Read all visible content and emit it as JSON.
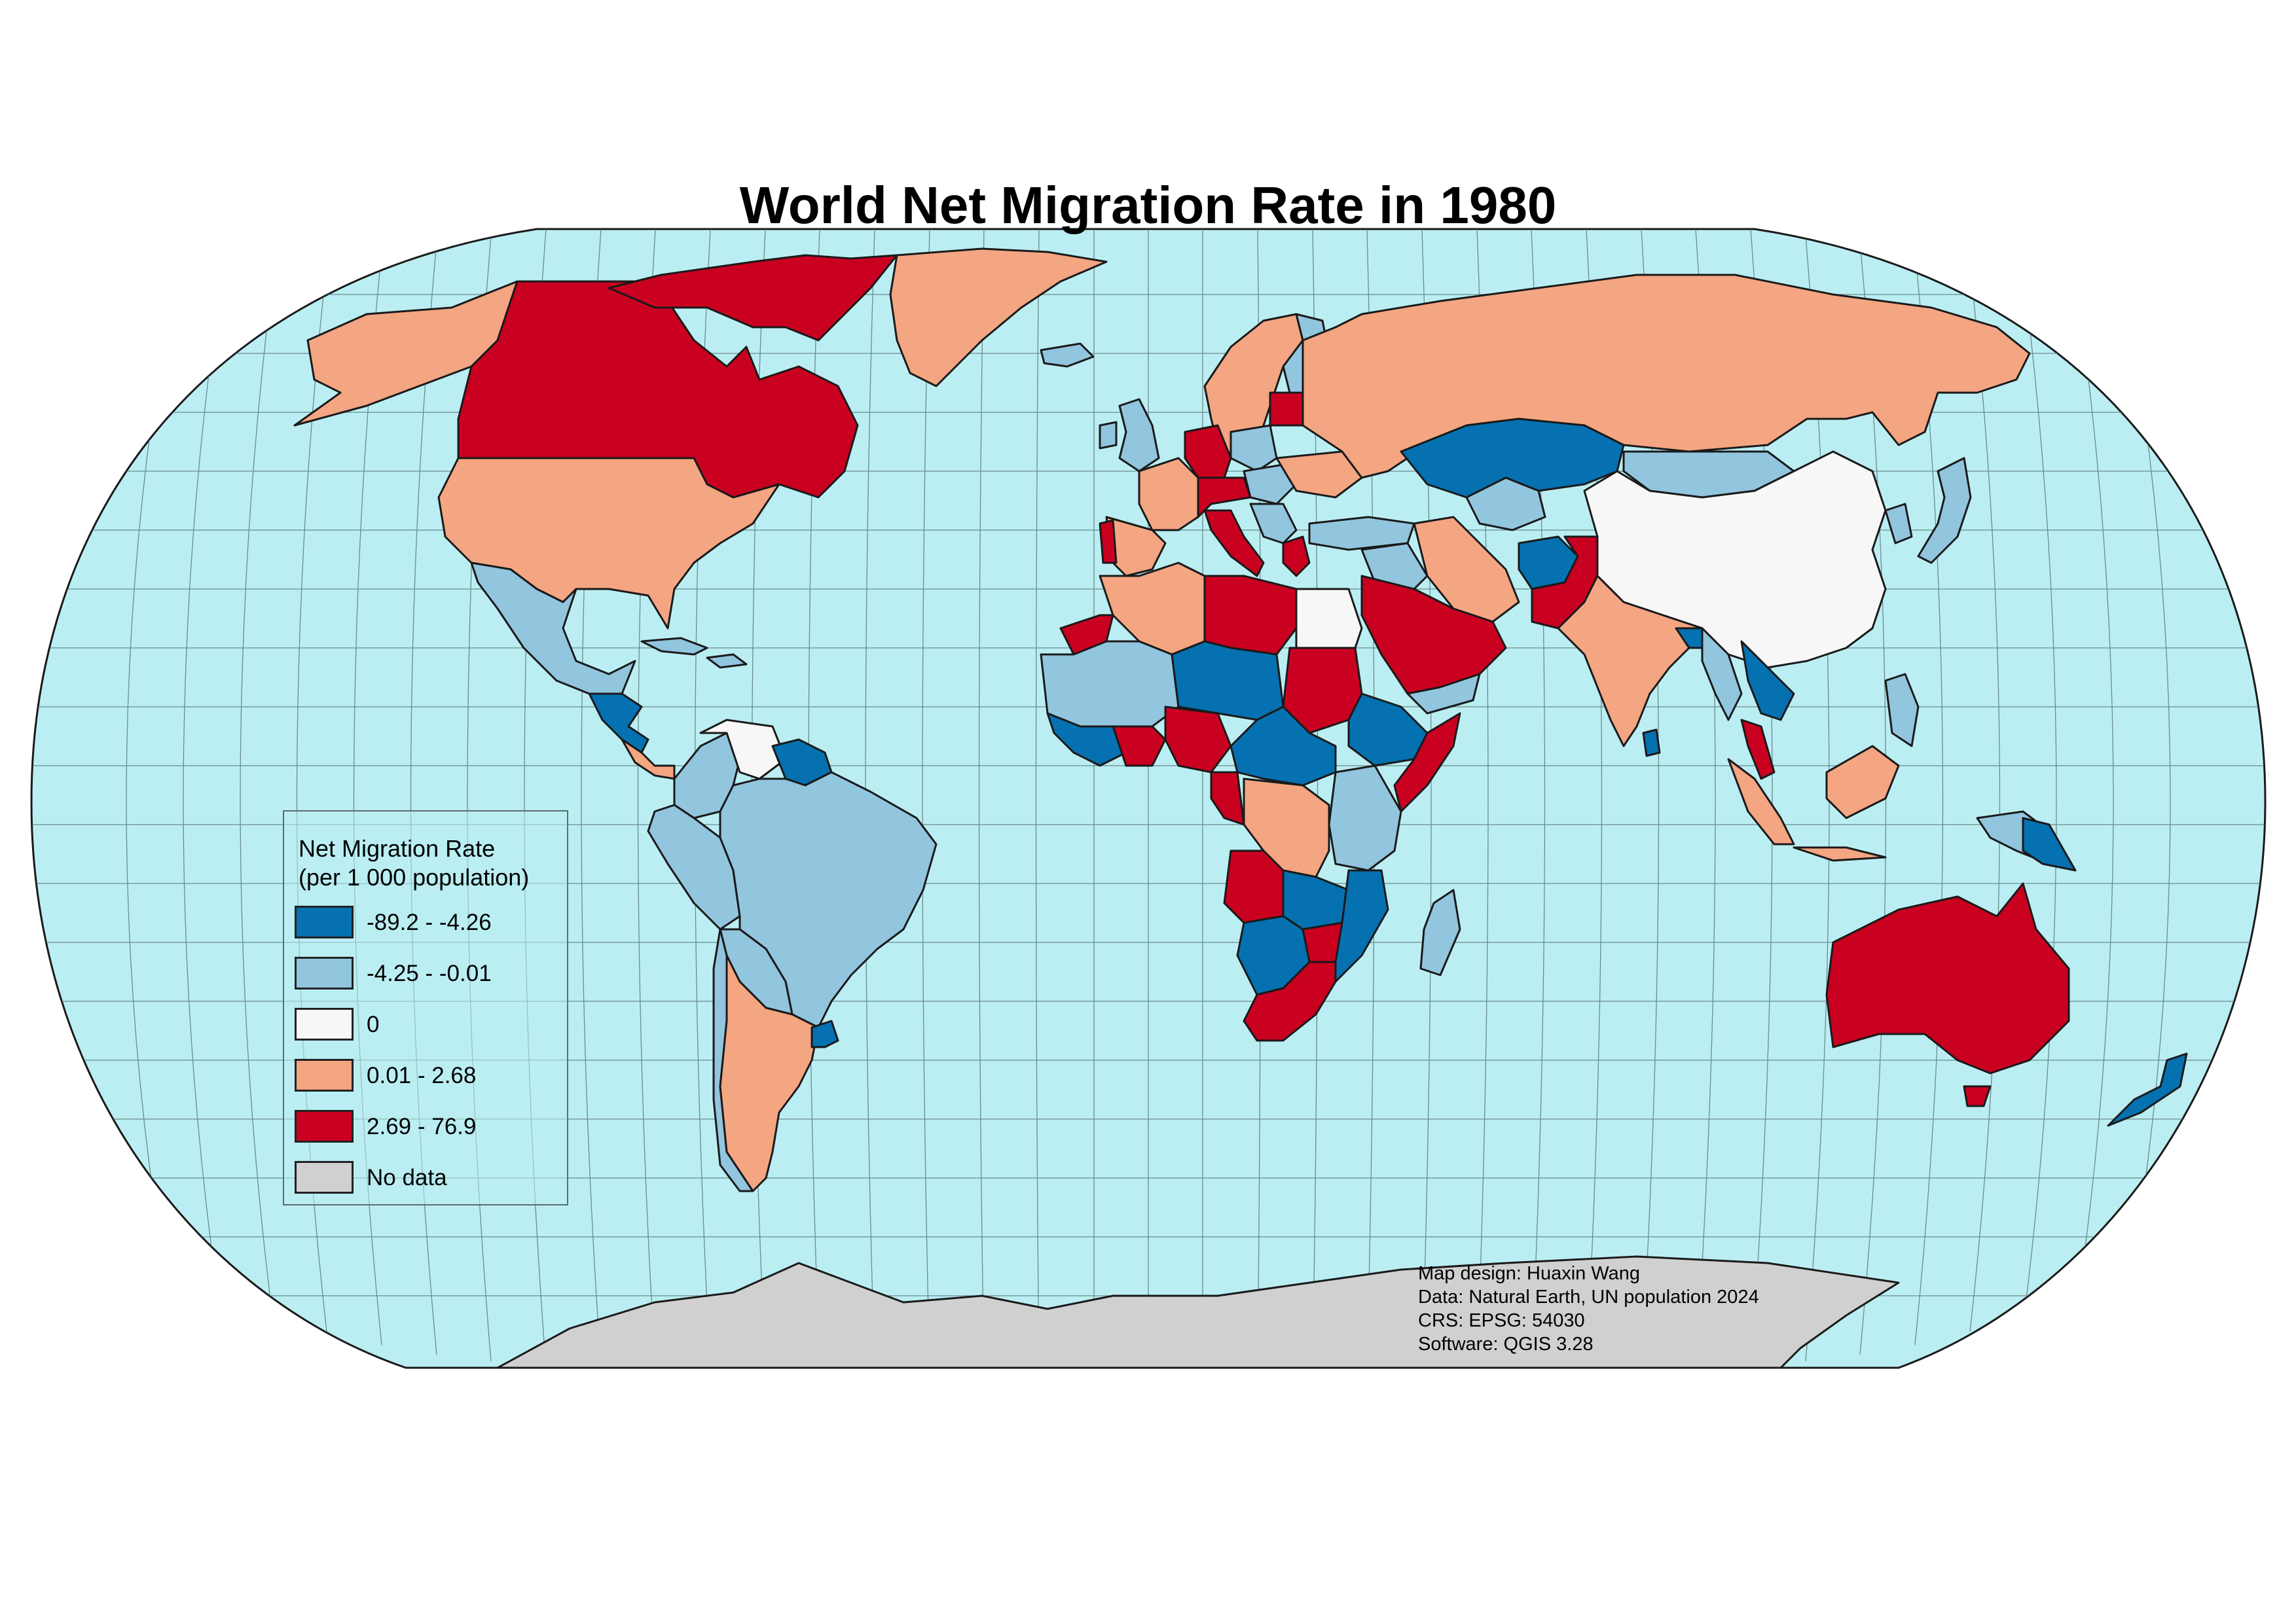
{
  "title": "World Net Migration Rate in 1980",
  "legend": {
    "heading_line1": "Net Migration Rate",
    "heading_line2": "(per 1 000 population)",
    "classes": [
      {
        "label": "-89.2 - -4.26",
        "color": "#0571b0"
      },
      {
        "label": "-4.25 - -0.01",
        "color": "#92c5de"
      },
      {
        "label": "0",
        "color": "#f7f7f7"
      },
      {
        "label": "0.01 - 2.68",
        "color": "#f4a582"
      },
      {
        "label": "2.69 - 76.9",
        "color": "#ca0020"
      },
      {
        "label": "No data",
        "color": "#d0d0d0"
      }
    ]
  },
  "credits": [
    "Map design: Huaxin Wang",
    "Data: Natural Earth, UN population 2024",
    "CRS: EPSG: 54030",
    "Software: QGIS 3.28"
  ],
  "colors": {
    "ocean": "#bbeef3",
    "graticule": "#4f6a6a",
    "border": "#1a1a1a"
  }
}
